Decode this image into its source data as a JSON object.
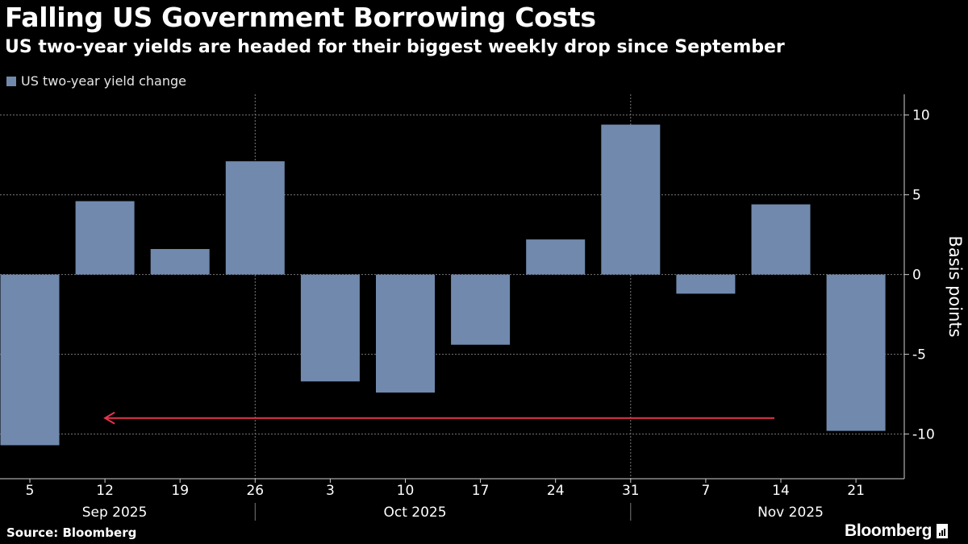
{
  "header": {
    "title": "Falling US Government Borrowing Costs",
    "subtitle": "US two-year yields are headed for their biggest weekly drop since September"
  },
  "legend": {
    "label": "US two-year yield change"
  },
  "footer": {
    "source": "Source: Bloomberg",
    "logo": "Bloomberg"
  },
  "colors": {
    "bar": "#7189ad",
    "arrow": "#e8334a",
    "grid": "#7a7a7a",
    "axis": "#cfcfcf",
    "background": "#000000"
  },
  "chart_data": {
    "type": "bar",
    "categories": [
      "5",
      "12",
      "19",
      "26",
      "3",
      "10",
      "17",
      "24",
      "31",
      "7",
      "14",
      "21"
    ],
    "month_labels": [
      {
        "label": "Sep 2025",
        "week": "12"
      },
      {
        "label": "Oct 2025",
        "week": "10"
      },
      {
        "label": "Nov 2025",
        "week": "14"
      }
    ],
    "series": [
      {
        "name": "US two-year yield change",
        "values": [
          -10.7,
          4.6,
          1.6,
          7.1,
          -6.7,
          -7.4,
          -4.4,
          2.2,
          9.4,
          -1.2,
          4.4,
          -9.8
        ]
      }
    ],
    "ylabel": "Basis points",
    "ylim": [
      -12.8,
      11.3
    ],
    "yticks": [
      10,
      5,
      0,
      -5,
      -10
    ],
    "grid": true,
    "legend_position": "top-left",
    "annotation": {
      "type": "arrow",
      "from_week": "14",
      "to_week": "12",
      "y": -9
    }
  }
}
